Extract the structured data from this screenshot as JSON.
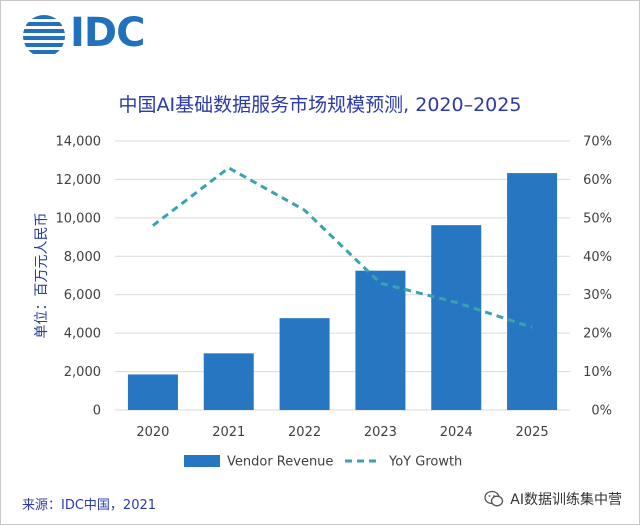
{
  "logo": {
    "text": "IDC",
    "color": "#2171bd"
  },
  "source_text": "来源：IDC中国，2021",
  "watermark_text": "AI数据训练集中营",
  "chart_data": {
    "type": "bar",
    "title": "中国AI基础数据服务市场规模预测, 2020–2025",
    "ylabel": "单位：百万元人民币",
    "categories": [
      "2020",
      "2021",
      "2022",
      "2023",
      "2024",
      "2025"
    ],
    "ylim": [
      0,
      14000
    ],
    "y2lim": [
      0,
      70
    ],
    "yticks": [
      "0",
      "2,000",
      "4,000",
      "6,000",
      "8,000",
      "10,000",
      "12,000",
      "14,000"
    ],
    "y2ticks": [
      "0%",
      "10%",
      "20%",
      "30%",
      "40%",
      "50%",
      "60%",
      "70%"
    ],
    "series": [
      {
        "name": "Vendor Revenue",
        "kind": "bar",
        "axis": "left",
        "color": "#2676c2",
        "values": [
          1850,
          2950,
          4780,
          7250,
          9620,
          12330
        ]
      },
      {
        "name": "YoY Growth",
        "kind": "line",
        "axis": "right",
        "style": "dashed",
        "color": "#3aa3ad",
        "values": [
          48.0,
          63.0,
          52.0,
          33.0,
          28.0,
          21.5
        ]
      }
    ],
    "legend": [
      "Vendor Revenue",
      "YoY Growth"
    ],
    "legend_position": "bottom",
    "colors": {
      "axis_text": "#404040",
      "gridline": "#d9d9d9",
      "ylabel": "#2a3aa8"
    }
  }
}
